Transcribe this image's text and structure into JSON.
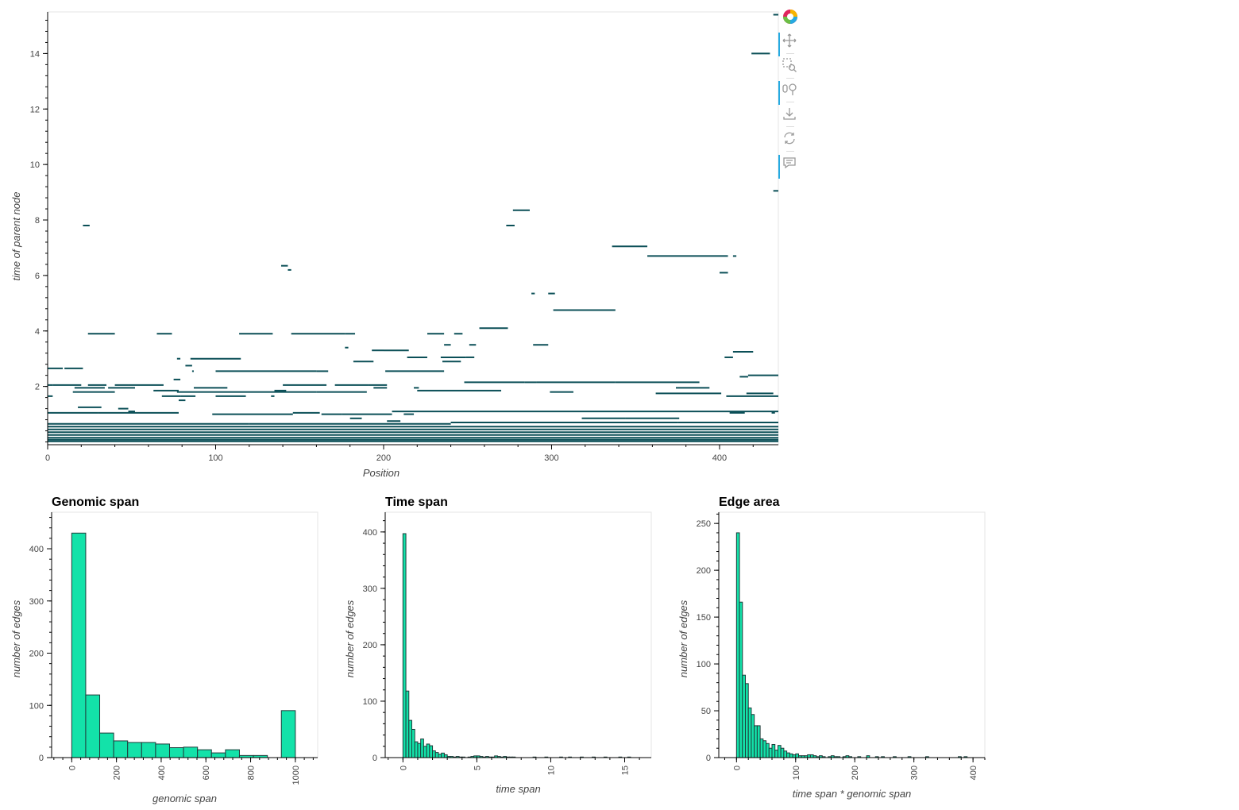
{
  "toolbar": {
    "tools": [
      {
        "name": "bokeh-logo",
        "icon": "bokeh-logo-icon",
        "active": false
      },
      {
        "name": "pan",
        "icon": "pan-icon",
        "active": true
      },
      {
        "name": "box-zoom",
        "icon": "box-zoom-icon",
        "active": false
      },
      {
        "name": "wheel-zoom",
        "icon": "wheel-zoom-icon",
        "active": true
      },
      {
        "name": "save",
        "icon": "save-icon",
        "active": false
      },
      {
        "name": "reset",
        "icon": "reset-icon",
        "active": false
      },
      {
        "name": "hover",
        "icon": "hover-icon",
        "active": true
      }
    ],
    "active_color": "#26aae1"
  },
  "chart_data": [
    {
      "type": "segments",
      "title": "",
      "xlabel": "Position",
      "ylabel": "time of parent node",
      "xlim": [
        0,
        435
      ],
      "ylim": [
        -0.1,
        15.5
      ],
      "xticks": [
        0,
        100,
        200,
        300,
        400
      ],
      "yticks": [
        2,
        4,
        6,
        8,
        10,
        12,
        14
      ],
      "color": "#0b4f57",
      "segments": [
        {
          "x0": 21,
          "x1": 25,
          "y": 7.8
        },
        {
          "x0": 139,
          "x1": 143,
          "y": 6.35
        },
        {
          "x0": 143,
          "x1": 145,
          "y": 6.2
        },
        {
          "x0": 277,
          "x1": 287,
          "y": 8.35
        },
        {
          "x0": 273,
          "x1": 278,
          "y": 7.8
        },
        {
          "x0": 336,
          "x1": 357,
          "y": 7.05
        },
        {
          "x0": 357,
          "x1": 405,
          "y": 6.7
        },
        {
          "x0": 408,
          "x1": 410,
          "y": 6.7
        },
        {
          "x0": 400,
          "x1": 405,
          "y": 6.1
        },
        {
          "x0": 419,
          "x1": 430,
          "y": 14.0
        },
        {
          "x0": 432,
          "x1": 435,
          "y": 15.4
        },
        {
          "x0": 432,
          "x1": 435,
          "y": 9.05
        },
        {
          "x0": 288,
          "x1": 290,
          "y": 5.35
        },
        {
          "x0": 298,
          "x1": 302,
          "y": 5.35
        },
        {
          "x0": 301,
          "x1": 338,
          "y": 4.75
        },
        {
          "x0": 24,
          "x1": 40,
          "y": 3.9
        },
        {
          "x0": 65,
          "x1": 74,
          "y": 3.9
        },
        {
          "x0": 114,
          "x1": 134,
          "y": 3.9
        },
        {
          "x0": 145,
          "x1": 177,
          "y": 3.9
        },
        {
          "x0": 177,
          "x1": 183,
          "y": 3.9
        },
        {
          "x0": 226,
          "x1": 236,
          "y": 3.9
        },
        {
          "x0": 242,
          "x1": 247,
          "y": 3.9
        },
        {
          "x0": 257,
          "x1": 274,
          "y": 4.1
        },
        {
          "x0": 236,
          "x1": 240,
          "y": 3.5
        },
        {
          "x0": 251,
          "x1": 255,
          "y": 3.5
        },
        {
          "x0": 289,
          "x1": 298,
          "y": 3.5
        },
        {
          "x0": 177,
          "x1": 179,
          "y": 3.4
        },
        {
          "x0": 193,
          "x1": 200,
          "y": 3.3
        },
        {
          "x0": 200,
          "x1": 215,
          "y": 3.3
        },
        {
          "x0": 408,
          "x1": 420,
          "y": 3.25
        },
        {
          "x0": 214,
          "x1": 226,
          "y": 3.05
        },
        {
          "x0": 234,
          "x1": 249,
          "y": 3.05
        },
        {
          "x0": 249,
          "x1": 254,
          "y": 3.05
        },
        {
          "x0": 403,
          "x1": 408,
          "y": 3.05
        },
        {
          "x0": 77,
          "x1": 79,
          "y": 3.0
        },
        {
          "x0": 85,
          "x1": 115,
          "y": 3.0
        },
        {
          "x0": 182,
          "x1": 194,
          "y": 2.9
        },
        {
          "x0": 235,
          "x1": 246,
          "y": 2.9
        },
        {
          "x0": 82,
          "x1": 86,
          "y": 2.75
        },
        {
          "x0": 0,
          "x1": 9,
          "y": 2.65
        },
        {
          "x0": 10,
          "x1": 21,
          "y": 2.65
        },
        {
          "x0": 86,
          "x1": 87,
          "y": 2.55
        },
        {
          "x0": 201,
          "x1": 236,
          "y": 2.55
        },
        {
          "x0": 100,
          "x1": 160,
          "y": 2.55
        },
        {
          "x0": 160,
          "x1": 167,
          "y": 2.55
        },
        {
          "x0": 412,
          "x1": 417,
          "y": 2.35
        },
        {
          "x0": 417,
          "x1": 435,
          "y": 2.4
        },
        {
          "x0": 75,
          "x1": 79,
          "y": 2.25
        },
        {
          "x0": 248,
          "x1": 284,
          "y": 2.15
        },
        {
          "x0": 284,
          "x1": 291,
          "y": 2.15
        },
        {
          "x0": 291,
          "x1": 338,
          "y": 2.15
        },
        {
          "x0": 338,
          "x1": 388,
          "y": 2.15
        },
        {
          "x0": 0,
          "x1": 3,
          "y": 2.05
        },
        {
          "x0": 3,
          "x1": 20,
          "y": 2.05
        },
        {
          "x0": 24,
          "x1": 35,
          "y": 2.05
        },
        {
          "x0": 40,
          "x1": 48,
          "y": 2.05
        },
        {
          "x0": 48,
          "x1": 69,
          "y": 2.05
        },
        {
          "x0": 140,
          "x1": 166,
          "y": 2.05
        },
        {
          "x0": 171,
          "x1": 191,
          "y": 2.05
        },
        {
          "x0": 191,
          "x1": 202,
          "y": 2.05
        },
        {
          "x0": 16,
          "x1": 34,
          "y": 1.95
        },
        {
          "x0": 36,
          "x1": 52,
          "y": 1.95
        },
        {
          "x0": 87,
          "x1": 107,
          "y": 1.95
        },
        {
          "x0": 194,
          "x1": 202,
          "y": 1.95
        },
        {
          "x0": 218,
          "x1": 221,
          "y": 1.95
        },
        {
          "x0": 374,
          "x1": 394,
          "y": 1.95
        },
        {
          "x0": 63,
          "x1": 78,
          "y": 1.85
        },
        {
          "x0": 135,
          "x1": 142,
          "y": 1.85
        },
        {
          "x0": 299,
          "x1": 313,
          "y": 1.8
        },
        {
          "x0": 220,
          "x1": 270,
          "y": 1.85
        },
        {
          "x0": 15,
          "x1": 40,
          "y": 1.8
        },
        {
          "x0": 77,
          "x1": 160,
          "y": 1.8
        },
        {
          "x0": 160,
          "x1": 190,
          "y": 1.8
        },
        {
          "x0": 362,
          "x1": 401,
          "y": 1.75
        },
        {
          "x0": 416,
          "x1": 432,
          "y": 1.75
        },
        {
          "x0": 0,
          "x1": 3,
          "y": 1.65
        },
        {
          "x0": 68,
          "x1": 79,
          "y": 1.65
        },
        {
          "x0": 79,
          "x1": 88,
          "y": 1.65
        },
        {
          "x0": 100,
          "x1": 118,
          "y": 1.65
        },
        {
          "x0": 133,
          "x1": 135,
          "y": 1.65
        },
        {
          "x0": 404,
          "x1": 435,
          "y": 1.65
        },
        {
          "x0": 78,
          "x1": 82,
          "y": 1.5
        },
        {
          "x0": 18,
          "x1": 32,
          "y": 1.25
        },
        {
          "x0": 42,
          "x1": 48,
          "y": 1.2
        },
        {
          "x0": 48,
          "x1": 52,
          "y": 1.1
        },
        {
          "x0": 0,
          "x1": 30,
          "y": 1.05
        },
        {
          "x0": 30,
          "x1": 78,
          "y": 1.05
        },
        {
          "x0": 98,
          "x1": 146,
          "y": 1.0
        },
        {
          "x0": 146,
          "x1": 162,
          "y": 1.05
        },
        {
          "x0": 163,
          "x1": 175,
          "y": 1.0
        },
        {
          "x0": 175,
          "x1": 205,
          "y": 1.0
        },
        {
          "x0": 205,
          "x1": 435,
          "y": 1.1
        },
        {
          "x0": 212,
          "x1": 218,
          "y": 1.0
        },
        {
          "x0": 406,
          "x1": 415,
          "y": 1.05
        },
        {
          "x0": 431,
          "x1": 433,
          "y": 1.05
        },
        {
          "x0": 180,
          "x1": 187,
          "y": 0.85
        },
        {
          "x0": 202,
          "x1": 210,
          "y": 0.75
        },
        {
          "x0": 318,
          "x1": 344,
          "y": 0.85
        },
        {
          "x0": 344,
          "x1": 376,
          "y": 0.85
        },
        {
          "x0": 0,
          "x1": 120,
          "y": 0.65
        },
        {
          "x0": 120,
          "x1": 240,
          "y": 0.65
        },
        {
          "x0": 240,
          "x1": 375,
          "y": 0.7
        },
        {
          "x0": 375,
          "x1": 435,
          "y": 0.7
        },
        {
          "x0": 0,
          "x1": 435,
          "y": 0.55
        },
        {
          "x0": 0,
          "x1": 435,
          "y": 0.45
        },
        {
          "x0": 0,
          "x1": 435,
          "y": 0.35
        },
        {
          "x0": 0,
          "x1": 435,
          "y": 0.25
        },
        {
          "x0": 0,
          "x1": 435,
          "y": 0.15
        },
        {
          "x0": 0,
          "x1": 435,
          "y": 0.08
        },
        {
          "x0": 0,
          "x1": 435,
          "y": 0.02
        }
      ]
    },
    {
      "type": "bar",
      "title": "Genomic span",
      "xlabel": "genomic span",
      "ylabel": "number of edges",
      "bin_edges": [
        0,
        62.5,
        125,
        187.5,
        250,
        312.5,
        375,
        437.5,
        500,
        562.5,
        625,
        687.5,
        750,
        812.5,
        875,
        937.5,
        1000
      ],
      "values": [
        430,
        120,
        47,
        32,
        29,
        29,
        26,
        19,
        20,
        15,
        9,
        15,
        4,
        4,
        0,
        90
      ],
      "xlim": [
        -90,
        1100
      ],
      "ylim": [
        0,
        470
      ],
      "xticks": [
        0,
        200,
        400,
        600,
        800,
        1000
      ],
      "yticks": [
        0,
        100,
        200,
        300,
        400
      ],
      "color": "#13e2a9"
    },
    {
      "type": "bar",
      "title": "Time span",
      "xlabel": "time span",
      "ylabel": "number of edges",
      "bin_edges": [
        0,
        0.2,
        0.4,
        0.6,
        0.8,
        1.0,
        1.2,
        1.4,
        1.6,
        1.8,
        2.0,
        2.2,
        2.4,
        2.6,
        2.8,
        3.0,
        3.2,
        3.4,
        3.6,
        3.8,
        4.0,
        4.2,
        4.4,
        4.6,
        4.8,
        5.0,
        5.2,
        5.4,
        5.6,
        5.8,
        6.0,
        6.2,
        6.4,
        6.6,
        6.8,
        7.0,
        7.2,
        7.4,
        7.6,
        7.8,
        8.0,
        8.2,
        8.4,
        8.6,
        8.8,
        9.0,
        9.2,
        9.4,
        9.6,
        9.8,
        10.0,
        10.2,
        10.4,
        10.6,
        10.8,
        11.0,
        11.2,
        11.4,
        11.6,
        11.8,
        12.0,
        12.2,
        12.4,
        12.6,
        12.8,
        13.0,
        13.2,
        13.4,
        13.6,
        13.8,
        14.0,
        14.2,
        14.4,
        14.6,
        14.8,
        15.0,
        15.2,
        15.4
      ],
      "values": [
        397,
        118,
        66,
        50,
        28,
        25,
        33,
        20,
        24,
        21,
        12,
        9,
        6,
        8,
        5,
        2,
        2,
        1,
        2,
        1,
        1,
        0,
        1,
        2,
        3,
        3,
        2,
        1,
        2,
        1,
        1,
        3,
        2,
        1,
        2,
        1,
        1,
        1,
        0,
        0,
        0,
        0,
        0,
        0,
        1,
        0,
        0,
        0,
        1,
        0,
        0,
        0,
        0,
        1,
        0,
        0,
        1,
        0,
        0,
        0,
        1,
        0,
        0,
        0,
        1,
        0,
        0,
        0,
        1,
        0,
        0,
        0,
        0,
        1,
        0,
        0,
        1
      ],
      "xlim": [
        -1.2,
        16.8
      ],
      "ylim": [
        0,
        435
      ],
      "xticks": [
        0,
        5,
        10,
        15
      ],
      "yticks": [
        0,
        100,
        200,
        300,
        400
      ],
      "color": "#13e2a9"
    },
    {
      "type": "bar",
      "title": "Edge area",
      "xlabel": "time span * genomic span",
      "ylabel": "number of edges",
      "bin_edges": [
        0,
        5,
        10,
        15,
        20,
        25,
        30,
        35,
        40,
        45,
        50,
        55,
        60,
        65,
        70,
        75,
        80,
        85,
        90,
        95,
        100,
        105,
        110,
        115,
        120,
        125,
        130,
        135,
        140,
        145,
        150,
        155,
        160,
        165,
        170,
        175,
        180,
        185,
        190,
        195,
        200,
        205,
        210,
        215,
        220,
        225,
        230,
        235,
        240,
        245,
        250,
        255,
        260,
        265,
        270,
        275,
        280,
        285,
        290,
        295,
        300,
        305,
        310,
        315,
        320,
        325,
        330,
        335,
        340,
        345,
        350,
        355,
        360,
        365,
        370,
        375,
        380,
        385,
        390
      ],
      "values": [
        240,
        166,
        88,
        79,
        53,
        46,
        34,
        34,
        20,
        18,
        15,
        10,
        14,
        8,
        13,
        10,
        7,
        5,
        4,
        3,
        4,
        2,
        2,
        2,
        3,
        3,
        2,
        1,
        2,
        1,
        0,
        1,
        2,
        1,
        1,
        0,
        1,
        2,
        1,
        0,
        0,
        1,
        0,
        0,
        2,
        0,
        0,
        1,
        0,
        1,
        0,
        0,
        0,
        1,
        0,
        0,
        0,
        0,
        1,
        0,
        0,
        0,
        0,
        0,
        1,
        0,
        0,
        0,
        0,
        0,
        0,
        0,
        0,
        0,
        0,
        1,
        0,
        1
      ],
      "xlim": [
        -30,
        420
      ],
      "ylim": [
        0,
        262
      ],
      "xticks": [
        0,
        100,
        200,
        300,
        400
      ],
      "yticks": [
        0,
        50,
        100,
        150,
        200,
        250
      ],
      "color": "#13e2a9"
    }
  ]
}
